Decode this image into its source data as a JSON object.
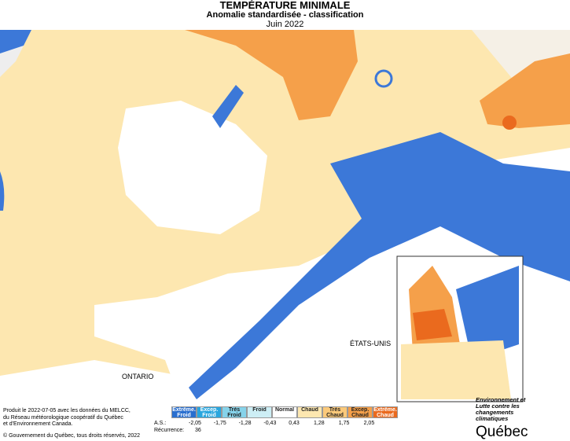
{
  "header": {
    "title": "TEMPÉRATURE MINIMALE",
    "subtitle": "Anomalie standardisée - classification",
    "date": "Juin 2022"
  },
  "map_labels": {
    "usa": "ÉTATS-UNIS",
    "ontario": "ONTARIO"
  },
  "legend": {
    "classes": [
      {
        "label": "Extrême. Froid",
        "color": "#2a6fcf"
      },
      {
        "label": "Excep. Froid",
        "color": "#2aa6de"
      },
      {
        "label": "Très Froid",
        "color": "#86d3ea"
      },
      {
        "label": "Froid",
        "color": "#cdeef5"
      },
      {
        "label": "Normal",
        "color": "#ffffff"
      },
      {
        "label": "Chaud",
        "color": "#fde7b0"
      },
      {
        "label": "Très Chaud",
        "color": "#fbc97a"
      },
      {
        "label": "Excep. Chaud",
        "color": "#f5a04a"
      },
      {
        "label": "Extrême. Chaud",
        "color": "#ea6a1e"
      }
    ],
    "thresholds_label": "A.S.:",
    "thresholds": [
      "-2,05",
      "-1,75",
      "-1,28",
      "-0,43",
      "0,43",
      "1,28",
      "1,75",
      "2,05"
    ],
    "recurrence_label": "Récurrence:",
    "recurrence": "36"
  },
  "credits": [
    "Produit le 2022-07-05 avec les données du MELCC,",
    "du Réseau météorologique coopératif du Québec",
    "et d'Environnement Canada.",
    "© Gouvernement du Québec, tous droits réservés, 2022"
  ],
  "logo": {
    "tagline": "Environnement et Lutte contre les changements climatiques",
    "name": "Québec"
  }
}
